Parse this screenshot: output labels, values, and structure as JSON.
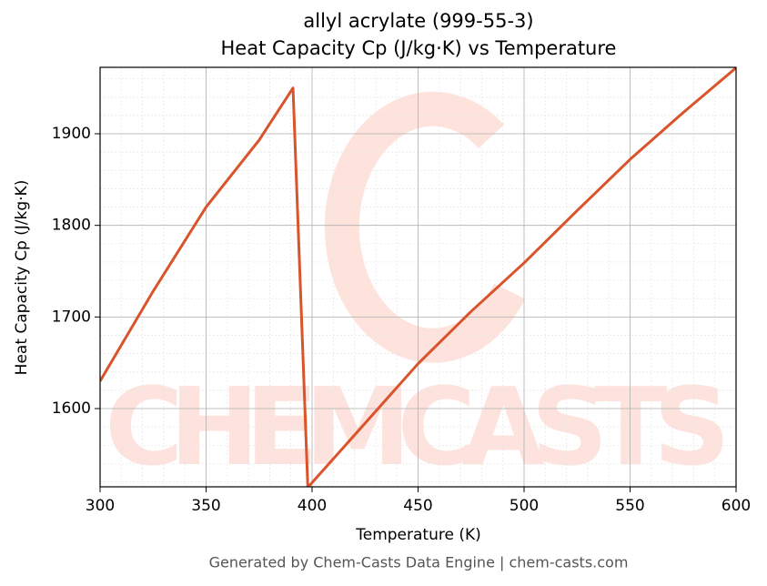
{
  "chart_data": {
    "type": "line",
    "title": "allyl acrylate (999-55-3)",
    "subtitle": "Heat Capacity Cp (J/kg·K) vs Temperature",
    "x_label": "Temperature (K)",
    "y_label": "Heat Capacity Cp (J/kg·K)",
    "footer": "Generated by Chem-Casts Data Engine | chem-casts.com",
    "watermark": "CHEMCASTS",
    "x": [
      300,
      325,
      350,
      375,
      391,
      398,
      425,
      450,
      475,
      500,
      525,
      550,
      575,
      600
    ],
    "series": [
      {
        "name": "Cp",
        "color": "#d9532b",
        "values": [
          1630,
          1728,
          1820,
          1893,
          1950,
          1514,
          1584,
          1649,
          1706,
          1759,
          1816,
          1872,
          1923,
          1972
        ]
      }
    ],
    "xlim": [
      300,
      600
    ],
    "xticks": [
      300,
      350,
      400,
      450,
      500,
      550,
      600
    ],
    "ylim": [
      1514.6,
      1972.5
    ],
    "yticks": [
      1600,
      1700,
      1800,
      1900
    ],
    "grid": true,
    "minor_grid": true
  }
}
